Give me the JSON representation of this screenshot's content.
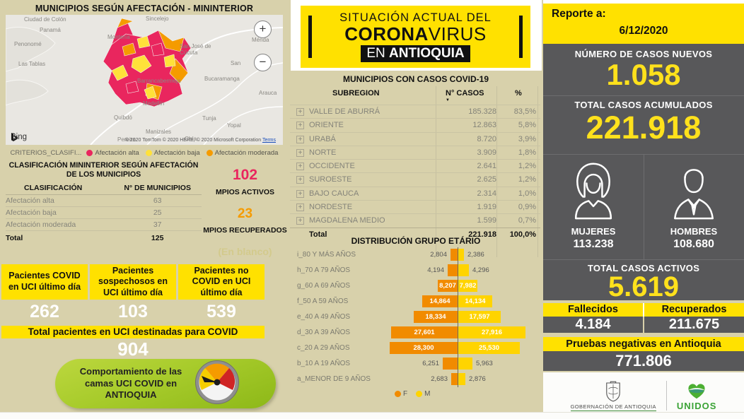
{
  "left_panel": {
    "title": "MUNICIPIOS SEGÚN AFECTACIÓN - MININTERIOR",
    "map": {
      "bing_label": "Bing",
      "copyright": "© 2020 TomTom © 2020 HERE, © 2020 Microsoft Corporation",
      "terms_label": "Terms",
      "zoom_in_label": "+",
      "zoom_out_label": "−",
      "cities": [
        "Ciudad de Colón",
        "Panamá",
        "Penonomé",
        "Las Tablas",
        "Montería",
        "Sincelejo",
        "San José de\nCúcuta",
        "San",
        "Mérida",
        "Bucaramanga",
        "Arauca",
        "Barrancabermeja",
        "Medellín",
        "Quibdó",
        "Tunja",
        "Yopal",
        "Manizales",
        "Pereira",
        "Chía"
      ]
    },
    "criteria_legend": {
      "title": "CRITERIOS_CLASIFI...",
      "items": [
        {
          "label": "Afectación alta",
          "color": "#e9265e"
        },
        {
          "label": "Afectación baja",
          "color": "#ffe13a"
        },
        {
          "label": "Afectación moderada",
          "color": "#f59b00"
        }
      ]
    },
    "classification": {
      "title": "CLASIFICACIÓN MININTERIOR SEGÚN AFECTACIÓN DE LOS MUNICIPIOS",
      "col_class": "CLASIFICACIÓN",
      "col_count": "N° DE MUNICIPIOS",
      "rows": [
        {
          "label": "Afectación alta",
          "value": "63"
        },
        {
          "label": "Afectación baja",
          "value": "25"
        },
        {
          "label": "Afectación moderada",
          "value": "37"
        }
      ],
      "total_label": "Total",
      "total_value": "125"
    },
    "mpios": {
      "activos_value": "102",
      "activos_label": "MPIOS ACTIVOS",
      "recuperados_value": "23",
      "recuperados_label": "MPIOS RECUPERADOS",
      "blank_label": "(En blanco)"
    },
    "uci_cards": [
      {
        "label": "Pacientes COVID en UCI último día",
        "value": "262"
      },
      {
        "label": "Pacientes sospechosos en UCI último día",
        "value": "103"
      },
      {
        "label": "Pacientes no COVID en UCI último día",
        "value": "539"
      }
    ],
    "uci_total": {
      "label": "Total pacientes en UCI destinadas para COVID",
      "value": "904"
    },
    "uci_button_label": "Comportamiento de las camas UCI COVID en ANTIOQUIA"
  },
  "middle_panel": {
    "header": {
      "line1": "SITUACIÓN ACTUAL DEL",
      "brand_bold": "CORONA",
      "brand_light": "VIRUS",
      "tag_light": "EN ",
      "tag_bold": "ANTIOQUIA"
    },
    "table": {
      "title": "MUNICIPIOS CON CASOS COVID-19",
      "col_subregion": "SUBREGION",
      "col_cases": "N° CASOS",
      "col_pct": "%",
      "rows": [
        {
          "name": "VALLE DE ABURRÁ",
          "cases": "185.328",
          "pct": "83,5%"
        },
        {
          "name": "ORIENTE",
          "cases": "12.863",
          "pct": "5,8%"
        },
        {
          "name": "URABÁ",
          "cases": "8.720",
          "pct": "3,9%"
        },
        {
          "name": "NORTE",
          "cases": "3.909",
          "pct": "1,8%"
        },
        {
          "name": "OCCIDENTE",
          "cases": "2.641",
          "pct": "1,2%"
        },
        {
          "name": "SUROESTE",
          "cases": "2.625",
          "pct": "1,2%"
        },
        {
          "name": "BAJO CAUCA",
          "cases": "2.314",
          "pct": "1,0%"
        },
        {
          "name": "NORDESTE",
          "cases": "1.919",
          "pct": "0,9%"
        },
        {
          "name": "MAGDALENA MEDIO",
          "cases": "1.599",
          "pct": "0,7%"
        }
      ],
      "total_label": "Total",
      "total_cases": "221.918",
      "total_pct": "100,0%"
    },
    "chart_title": "DISTRIBUCIÓN GRUPO ETÁRIO"
  },
  "right_panel": {
    "report_label": "Reporte a:",
    "report_date": "6/12/2020",
    "new_cases_label": "NÚMERO DE CASOS NUEVOS",
    "new_cases_value": "1.058",
    "total_cases_label": "TOTAL CASOS ACUMULADOS",
    "total_cases_value": "221.918",
    "women_label": "MUJERES",
    "women_value": "113.238",
    "men_label": "HOMBRES",
    "men_value": "108.680",
    "active_label": "TOTAL CASOS ACTIVOS",
    "active_value": "5.619",
    "deaths_label": "Fallecidos",
    "deaths_value": "4.184",
    "recovered_label": "Recuperados",
    "recovered_value": "211.675",
    "negative_label": "Pruebas negativas en Antioquia",
    "negative_value": "771.806",
    "footer": {
      "gobernacion": "GOBERNACIÓN DE ANTIOQUIA",
      "unidos": "UNIDOS"
    }
  },
  "chart_data": {
    "type": "bar",
    "subtype": "population_pyramid",
    "orientation": "horizontal",
    "title": "DISTRIBUCIÓN GRUPO ETÁRIO",
    "categories": [
      "i_80 Y MÁS AÑOS",
      "h_70 A 79 AÑOS",
      "g_60 A 69 AÑOS",
      "f_50 A 59 AÑOS",
      "e_40 A 49 AÑOS",
      "d_30 A 39 AÑOS",
      "c_20 A 29 AÑOS",
      "b_10 A 19 AÑOS",
      "a_MENOR DE 9 AÑOS"
    ],
    "series": [
      {
        "name": "F",
        "color": "#f18b00",
        "values": [
          2804,
          4194,
          8207,
          14864,
          18334,
          27601,
          28300,
          6251,
          2683
        ]
      },
      {
        "name": "M",
        "color": "#ffd400",
        "values": [
          2386,
          4296,
          7982,
          14134,
          17597,
          27916,
          25530,
          5963,
          2876
        ]
      }
    ],
    "xlim": [
      0,
      28300
    ],
    "legend_position": "bottom"
  }
}
